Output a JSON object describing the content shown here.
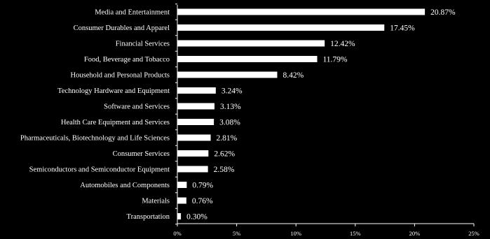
{
  "chart_data": {
    "type": "bar",
    "orientation": "horizontal",
    "categories": [
      "Media and Entertainment",
      "Consumer Durables and Apparel",
      "Financial Services",
      "Food, Beverage and Tobacco",
      "Household and Personal Products",
      "Technology Hardware and Equipment",
      "Software and Services",
      "Health Care Equipment and Services",
      "Pharmaceuticals, Biotechnology and Life Sciences",
      "Consumer Services",
      "Semiconductors and Semiconductor Equipment",
      "Automobiles and Components",
      "Materials",
      "Transportation"
    ],
    "values": [
      20.87,
      17.45,
      12.42,
      11.79,
      8.42,
      3.24,
      3.13,
      3.08,
      2.81,
      2.62,
      2.58,
      0.79,
      0.76,
      0.3
    ],
    "value_labels": [
      "20.87%",
      "17.45%",
      "12.42%",
      "11.79%",
      "8.42%",
      "3.24%",
      "3.13%",
      "3.08%",
      "2.81%",
      "2.62%",
      "2.58%",
      "0.79%",
      "0.76%",
      "0.30%"
    ],
    "xlim": [
      0,
      25
    ],
    "xticks": [
      0,
      5,
      10,
      15,
      20,
      25
    ],
    "xtick_labels": [
      "0%",
      "5%",
      "10%",
      "15%",
      "20%",
      "25%"
    ],
    "title": "",
    "xlabel": "",
    "ylabel": "",
    "grid": false,
    "legend": "none",
    "colors": {
      "background": "#000000",
      "bar": "#ffffff",
      "text": "#ffffff",
      "axis": "#ffffff"
    }
  }
}
